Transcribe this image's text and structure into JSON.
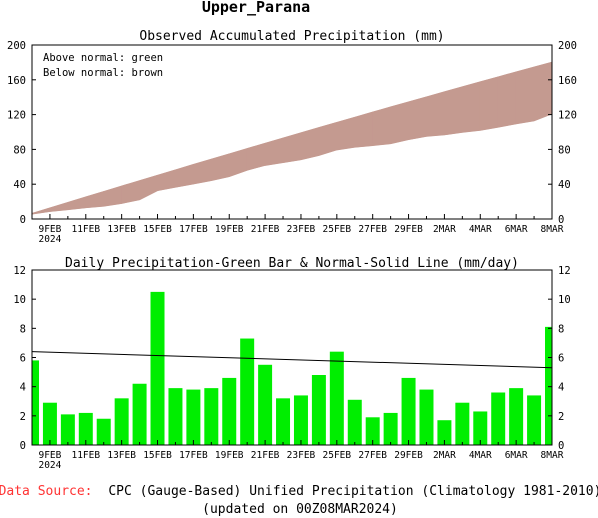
{
  "page_title": "Upper_Parana",
  "footer": {
    "source_label": "Data Source:",
    "source_text": "CPC (Gauge-Based) Unified Precipitation (Climatology 1981-2010)",
    "updated": "(updated on 00Z08MAR2024)"
  },
  "colors": {
    "above_normal": "#00cc00",
    "below_normal": "#c49a90",
    "bars": "#00ee00",
    "source_label": "#ff3333"
  },
  "chart_data": [
    {
      "type": "area",
      "title": "Observed Accumulated Precipitation (mm)",
      "annotations": [
        "Above normal: green",
        "Below normal: brown"
      ],
      "ylim": [
        0,
        200
      ],
      "y_ticks": [
        0,
        40,
        80,
        120,
        160,
        200
      ],
      "x_tick_labels": [
        "9FEB",
        "11FEB",
        "13FEB",
        "15FEB",
        "17FEB",
        "19FEB",
        "21FEB",
        "23FEB",
        "25FEB",
        "27FEB",
        "29FEB",
        "2MAR",
        "4MAR",
        "6MAR",
        "8MAR"
      ],
      "x_year_label": "2024",
      "dates": [
        "8FEB",
        "9FEB",
        "10FEB",
        "11FEB",
        "12FEB",
        "13FEB",
        "14FEB",
        "15FEB",
        "16FEB",
        "17FEB",
        "18FEB",
        "19FEB",
        "20FEB",
        "21FEB",
        "22FEB",
        "23FEB",
        "24FEB",
        "25FEB",
        "26FEB",
        "27FEB",
        "28FEB",
        "29FEB",
        "1MAR",
        "2MAR",
        "3MAR",
        "4MAR",
        "5MAR",
        "6MAR",
        "7MAR",
        "8MAR"
      ],
      "observed": [
        5.8,
        8.7,
        10.8,
        13.0,
        14.8,
        18.0,
        22.2,
        32.7,
        36.6,
        40.4,
        44.3,
        48.9,
        56.2,
        61.7,
        64.9,
        68.3,
        73.1,
        79.5,
        82.6,
        84.5,
        86.7,
        91.3,
        95.1,
        96.8,
        99.7,
        102.0,
        105.6,
        109.5,
        112.9,
        121.0
      ],
      "normal": [
        6.4,
        12.7,
        19.0,
        25.3,
        31.5,
        37.8,
        44.0,
        50.2,
        56.4,
        62.6,
        68.7,
        74.8,
        80.9,
        87.0,
        93.0,
        99.0,
        105.0,
        111.0,
        116.9,
        122.8,
        128.7,
        134.5,
        140.3,
        146.1,
        151.9,
        157.6,
        163.3,
        169.0,
        174.6,
        180.2
      ]
    },
    {
      "type": "bar",
      "title": "Daily Precipitation-Green Bar & Normal-Solid Line (mm/day)",
      "ylim": [
        0,
        12
      ],
      "y_ticks": [
        0,
        2,
        4,
        6,
        8,
        10,
        12
      ],
      "x_tick_labels": [
        "9FEB",
        "11FEB",
        "13FEB",
        "15FEB",
        "17FEB",
        "19FEB",
        "21FEB",
        "23FEB",
        "25FEB",
        "27FEB",
        "29FEB",
        "2MAR",
        "4MAR",
        "6MAR",
        "8MAR"
      ],
      "x_year_label": "2024",
      "dates": [
        "8FEB",
        "9FEB",
        "10FEB",
        "11FEB",
        "12FEB",
        "13FEB",
        "14FEB",
        "15FEB",
        "16FEB",
        "17FEB",
        "18FEB",
        "19FEB",
        "20FEB",
        "21FEB",
        "22FEB",
        "23FEB",
        "24FEB",
        "25FEB",
        "26FEB",
        "27FEB",
        "28FEB",
        "29FEB",
        "1MAR",
        "2MAR",
        "3MAR",
        "4MAR",
        "5MAR",
        "6MAR",
        "7MAR",
        "8MAR"
      ],
      "daily": [
        5.8,
        2.9,
        2.1,
        2.2,
        1.8,
        3.2,
        4.2,
        10.5,
        3.9,
        3.8,
        3.9,
        4.6,
        7.3,
        5.5,
        3.2,
        3.4,
        4.8,
        6.4,
        3.1,
        1.9,
        2.2,
        4.6,
        3.8,
        1.7,
        2.9,
        2.3,
        3.6,
        3.9,
        3.4,
        8.1
      ],
      "normal_line": [
        6.4,
        5.3
      ]
    }
  ]
}
